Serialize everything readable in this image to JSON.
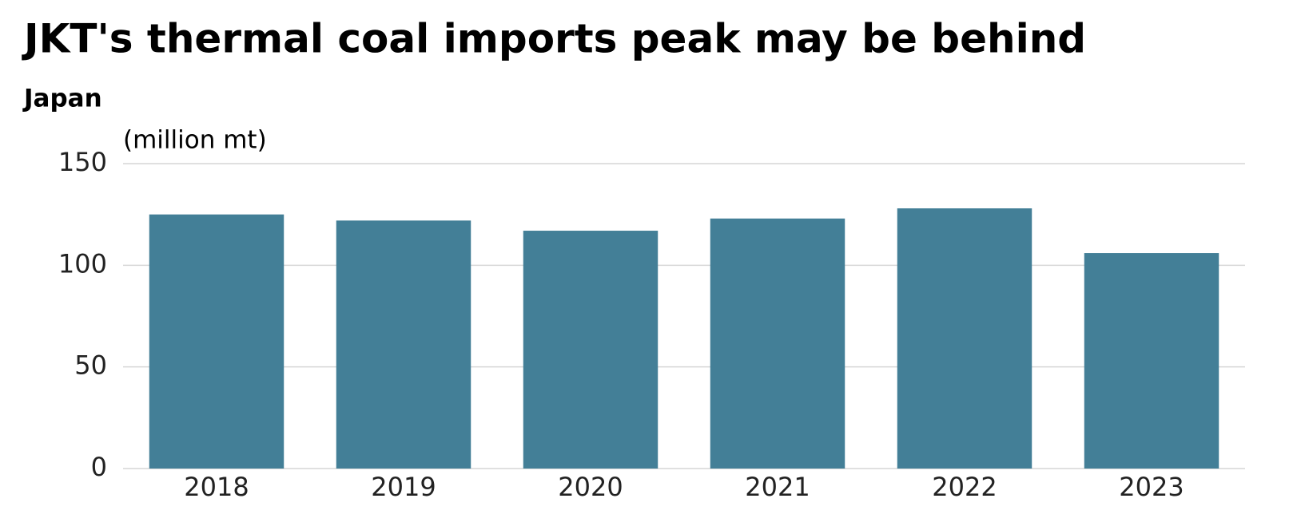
{
  "chart_data": {
    "type": "bar",
    "title": "JKT's thermal coal imports peak may be behind",
    "subtitle": "Japan",
    "y_label": "(million mt)",
    "categories": [
      "2018",
      "2019",
      "2020",
      "2021",
      "2022",
      "2023"
    ],
    "values": [
      125,
      122,
      117,
      123,
      128,
      106
    ],
    "color": "#437f97",
    "ylim": [
      0,
      150
    ],
    "yticks": [
      0,
      50,
      100,
      150
    ],
    "grid": true
  }
}
